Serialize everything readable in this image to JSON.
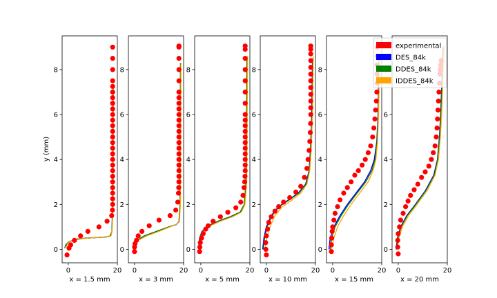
{
  "chart_data": {
    "type": "line",
    "ylabel": "y (mm)",
    "xlim": [
      -2.5,
      20
    ],
    "ylim": [
      -0.6,
      9.5
    ],
    "x_ticks": [
      0,
      20
    ],
    "y_ticks": [
      0,
      2,
      4,
      6,
      8
    ],
    "legend": {
      "placement": "top-right",
      "entries": [
        {
          "label": "experimental",
          "color": "#ff0000"
        },
        {
          "label": "DES_84k",
          "color": "#0000ff"
        },
        {
          "label": "DDES_84k",
          "color": "#008000"
        },
        {
          "label": "IDDES_84k",
          "color": "#ffa500"
        }
      ]
    },
    "panels": [
      {
        "xlabel": "x = 1.5 mm",
        "experimental": {
          "x": [
            -0.5,
            0.3,
            1,
            2.5,
            5,
            8,
            12.5,
            15.8,
            17.7,
            18,
            18.1,
            18.1,
            18.1,
            18.1,
            18.1,
            18.1,
            18.1,
            18.1,
            18.1,
            18.1,
            18.1,
            18.1,
            18.1,
            18.1,
            18.1,
            18.1,
            18.1,
            18.1,
            18.1,
            18.1,
            18.1,
            18.1,
            18.1,
            18.1,
            18.1,
            18.1
          ],
          "y": [
            -0.25,
            0.05,
            0.2,
            0.4,
            0.6,
            0.8,
            1.0,
            1.25,
            1.5,
            1.75,
            2.0,
            2.25,
            2.5,
            2.75,
            3.0,
            3.25,
            3.5,
            3.75,
            4.0,
            4.25,
            4.5,
            4.75,
            5.0,
            5.25,
            5.5,
            5.75,
            6.0,
            6.25,
            6.5,
            6.75,
            7.0,
            7.25,
            7.5,
            8.0,
            8.5,
            9.0
          ]
        },
        "DES_84k": {
          "x": [
            -1,
            -0.5,
            0.5,
            3,
            7,
            12,
            16,
            17.3,
            17.8,
            18.1,
            18.3
          ],
          "y": [
            0.15,
            0.25,
            0.35,
            0.45,
            0.5,
            0.53,
            0.56,
            0.6,
            0.8,
            2.0,
            7.2
          ]
        },
        "DDES_84k": {
          "x": [
            -1.5,
            -1,
            0,
            2.5,
            6,
            11,
            15.5,
            17,
            17.8,
            18.1,
            18.3
          ],
          "y": [
            0.05,
            0.2,
            0.32,
            0.42,
            0.48,
            0.52,
            0.55,
            0.6,
            0.8,
            2.0,
            7.2
          ]
        },
        "IDDES_84k": {
          "x": [
            -0.8,
            -0.3,
            0.8,
            3.5,
            8,
            13,
            16.5,
            17.5,
            17.9,
            18.2,
            18.4
          ],
          "y": [
            0.1,
            0.25,
            0.36,
            0.45,
            0.5,
            0.54,
            0.57,
            0.62,
            0.85,
            2.0,
            7.3
          ]
        }
      },
      {
        "xlabel": "x = 3 mm",
        "experimental": {
          "x": [
            0,
            0,
            0.2,
            0.8,
            1.5,
            3,
            6,
            10,
            14.5,
            16.8,
            17.6,
            17.9,
            18,
            18.1,
            18.1,
            18.1,
            18.1,
            18.1,
            18.1,
            18.1,
            18.1,
            18.1,
            18.1,
            18.1,
            18.1,
            18.1,
            18.1,
            18.1,
            18.1,
            18.1,
            18.1,
            18.1,
            18.1,
            18.1,
            18.1
          ],
          "y": [
            -0.1,
            0.1,
            0.25,
            0.4,
            0.6,
            0.8,
            1.05,
            1.3,
            1.5,
            1.75,
            2.1,
            2.5,
            2.75,
            3.0,
            3.25,
            3.5,
            3.75,
            4.0,
            4.25,
            4.5,
            4.75,
            5.0,
            5.25,
            5.5,
            5.75,
            6.0,
            6.25,
            6.5,
            6.75,
            7.0,
            7.5,
            8.0,
            8.5,
            9.0,
            9.05
          ]
        },
        "DES_84k": {
          "x": [
            -0.2,
            0,
            1,
            4,
            9,
            14,
            17,
            18.2,
            18.6,
            18.8
          ],
          "y": [
            0,
            0.2,
            0.4,
            0.6,
            0.8,
            1.0,
            1.1,
            1.25,
            2.0,
            8.3
          ]
        },
        "DDES_84k": {
          "x": [
            -0.2,
            0,
            1,
            4,
            9,
            14,
            17,
            18.1,
            18.5,
            18.7
          ],
          "y": [
            0,
            0.2,
            0.4,
            0.6,
            0.8,
            1.0,
            1.1,
            1.25,
            2.0,
            8.3
          ]
        },
        "IDDES_84k": {
          "x": [
            -0.1,
            0.2,
            1.5,
            5,
            10,
            14.5,
            17.2,
            18.3,
            18.7,
            18.9
          ],
          "y": [
            0,
            0.2,
            0.4,
            0.6,
            0.8,
            1.0,
            1.12,
            1.3,
            2.0,
            8.3
          ]
        }
      },
      {
        "xlabel": "x = 5 mm",
        "experimental": {
          "x": [
            -0.5,
            -0.4,
            -0.2,
            0.3,
            1,
            2,
            3,
            5,
            8,
            11,
            14.3,
            16.3,
            17.2,
            17.6,
            17.9,
            18,
            18.1,
            18.1,
            18.1,
            18.1,
            18.1,
            18.1,
            18.1,
            18.1,
            18.1,
            18.1,
            18.1,
            18.1,
            18.1,
            18.1,
            18.1,
            18.1,
            18.1,
            18.1
          ],
          "y": [
            -0.1,
            0.1,
            0.3,
            0.5,
            0.7,
            0.9,
            1.05,
            1.25,
            1.45,
            1.65,
            1.85,
            2.1,
            2.4,
            2.75,
            3.0,
            3.25,
            3.5,
            3.75,
            4.0,
            4.25,
            4.5,
            4.75,
            5.0,
            5.25,
            5.5,
            5.75,
            6.0,
            6.5,
            7.0,
            7.5,
            8.0,
            8.5,
            8.9,
            9.05
          ]
        },
        "DES_84k": {
          "x": [
            -0.8,
            -0.5,
            0.5,
            3,
            7,
            12,
            16,
            17.8,
            18.5,
            18.9
          ],
          "y": [
            0.2,
            0.5,
            0.8,
            1.05,
            1.25,
            1.45,
            1.65,
            2.0,
            3.0,
            8.5
          ]
        },
        "DDES_84k": {
          "x": [
            -0.7,
            -0.4,
            0.6,
            3,
            7,
            12,
            16,
            17.7,
            18.4,
            18.8
          ],
          "y": [
            0.2,
            0.5,
            0.8,
            1.05,
            1.25,
            1.45,
            1.65,
            2.0,
            3.0,
            8.5
          ]
        },
        "IDDES_84k": {
          "x": [
            -0.5,
            0,
            1.2,
            4,
            8,
            13,
            16.5,
            18,
            18.7,
            19.1
          ],
          "y": [
            0.2,
            0.5,
            0.8,
            1.05,
            1.25,
            1.45,
            1.65,
            2.0,
            3.0,
            8.6
          ]
        }
      },
      {
        "xlabel": "x = 10 mm",
        "experimental": {
          "x": [
            0,
            -0.2,
            -0.3,
            0,
            0.5,
            1,
            2,
            3.5,
            5,
            7,
            9.5,
            12,
            14,
            15.5,
            16.5,
            17,
            17.4,
            17.7,
            17.9,
            18,
            18.1,
            18.1,
            18.1,
            18.1,
            18.1,
            18.1,
            18.1,
            18.1,
            18.1,
            18.1,
            18.1,
            18.1
          ],
          "y": [
            -0.25,
            0,
            0.3,
            0.6,
            0.9,
            1.2,
            1.45,
            1.7,
            1.9,
            2.1,
            2.3,
            2.55,
            2.8,
            3.2,
            3.6,
            4.0,
            4.4,
            4.8,
            5.2,
            5.6,
            6.0,
            6.3,
            6.6,
            6.9,
            7.2,
            7.5,
            7.8,
            8.1,
            8.4,
            8.7,
            8.9,
            9.05
          ]
        },
        "DES_84k": {
          "x": [
            -1.5,
            -1,
            0,
            2,
            5,
            9,
            13,
            16,
            17.4,
            18,
            18.5,
            18.8
          ],
          "y": [
            0,
            0.5,
            1.0,
            1.5,
            1.9,
            2.2,
            2.5,
            2.9,
            3.5,
            4.5,
            6.0,
            8.5
          ]
        },
        "DDES_84k": {
          "x": [
            -1.2,
            -0.7,
            0.3,
            2.3,
            5.3,
            9.3,
            13.3,
            16.2,
            17.5,
            18.1,
            18.6,
            18.9
          ],
          "y": [
            0,
            0.5,
            1.0,
            1.5,
            1.9,
            2.2,
            2.5,
            2.9,
            3.5,
            4.5,
            6.0,
            8.5
          ]
        },
        "IDDES_84k": {
          "x": [
            -0.5,
            0.2,
            1.5,
            3.5,
            6.5,
            10.5,
            14,
            16.5,
            17.7,
            18.3,
            18.8,
            19.1
          ],
          "y": [
            0,
            0.5,
            1.0,
            1.5,
            1.9,
            2.2,
            2.5,
            2.9,
            3.5,
            4.5,
            6.0,
            8.6
          ]
        }
      },
      {
        "xlabel": "x = 15 mm",
        "experimental": {
          "x": [
            -0.5,
            -0.5,
            -0.4,
            -0.2,
            0,
            0.5,
            1,
            2,
            3,
            4.5,
            6,
            7.5,
            9,
            10.5,
            12,
            13.3,
            14.5,
            15.5,
            16.3,
            16.8,
            17.2,
            17.5,
            17.8,
            18,
            18.1,
            18.1,
            18.1,
            18.1,
            18.1
          ],
          "y": [
            -0.1,
            0.2,
            0.5,
            0.8,
            1.0,
            1.3,
            1.6,
            1.9,
            2.2,
            2.5,
            2.75,
            3.0,
            3.3,
            3.5,
            3.75,
            4.0,
            4.3,
            4.6,
            5.0,
            5.4,
            5.8,
            6.2,
            6.6,
            7.0,
            7.4,
            7.8,
            8.2,
            8.6,
            9.0
          ]
        },
        "DES_84k": {
          "x": [
            -1.5,
            -1,
            0.5,
            3,
            6,
            9.5,
            13,
            15.5,
            17,
            18,
            18.5,
            18.8,
            19
          ],
          "y": [
            0,
            0.5,
            1.0,
            1.5,
            2.0,
            2.5,
            3.0,
            3.5,
            4.0,
            4.8,
            6.0,
            7.5,
            8.6
          ]
        },
        "DDES_84k": {
          "x": [
            -1,
            -0.4,
            1,
            3.5,
            6.5,
            10,
            13.5,
            16,
            17.3,
            18.1,
            18.6,
            18.9,
            19.1
          ],
          "y": [
            0,
            0.5,
            1.0,
            1.5,
            2.0,
            2.5,
            3.0,
            3.5,
            4.0,
            4.8,
            6.0,
            7.5,
            8.6
          ]
        },
        "IDDES_84k": {
          "x": [
            -0.5,
            0.5,
            2,
            4.5,
            7.5,
            11,
            14.5,
            16.5,
            17.6,
            18.3,
            18.7,
            19,
            19.2
          ],
          "y": [
            0,
            0.5,
            1.0,
            1.5,
            2.0,
            2.5,
            3.0,
            3.5,
            4.0,
            4.8,
            6.0,
            7.5,
            8.6
          ]
        }
      },
      {
        "xlabel": "x = 20 mm",
        "experimental": {
          "x": [
            0,
            -0.2,
            -0.2,
            0,
            0.5,
            1,
            2,
            3,
            4,
            5,
            6.5,
            8,
            9.5,
            11,
            12.5,
            13.5,
            14.3,
            15,
            15.5,
            15.8,
            16,
            16.2,
            16.4,
            16.6,
            16.8,
            17,
            17.1,
            17.3,
            17.5
          ],
          "y": [
            -0.2,
            0.1,
            0.4,
            0.7,
            1.0,
            1.3,
            1.6,
            1.9,
            2.15,
            2.4,
            2.65,
            2.9,
            3.2,
            3.45,
            3.7,
            4.0,
            4.3,
            4.6,
            5.0,
            5.4,
            5.8,
            6.2,
            6.6,
            7.0,
            7.4,
            7.8,
            8.0,
            8.2,
            8.4
          ]
        },
        "DES_84k": {
          "x": [
            -0.8,
            -0.3,
            1,
            3.5,
            7,
            11,
            14.5,
            16,
            16.8,
            17.3,
            17.8,
            18.3
          ],
          "y": [
            0,
            0.5,
            1.0,
            1.5,
            2.0,
            2.6,
            3.3,
            4.0,
            5.0,
            6.0,
            7.5,
            9.0
          ]
        },
        "DDES_84k": {
          "x": [
            -0.6,
            -0.1,
            1.2,
            3.7,
            7.2,
            11.2,
            14.7,
            16.1,
            16.9,
            17.4,
            17.9,
            18.4
          ],
          "y": [
            0,
            0.5,
            1.0,
            1.5,
            2.0,
            2.6,
            3.3,
            4.0,
            5.0,
            6.0,
            7.5,
            9.0
          ]
        },
        "IDDES_84k": {
          "x": [
            -0.3,
            0.3,
            1.7,
            4.2,
            7.7,
            11.7,
            15,
            16.4,
            17.2,
            17.7,
            18.2,
            18.7
          ],
          "y": [
            0,
            0.5,
            1.0,
            1.5,
            2.0,
            2.6,
            3.3,
            4.0,
            5.0,
            6.0,
            7.5,
            9.1
          ]
        }
      }
    ]
  }
}
